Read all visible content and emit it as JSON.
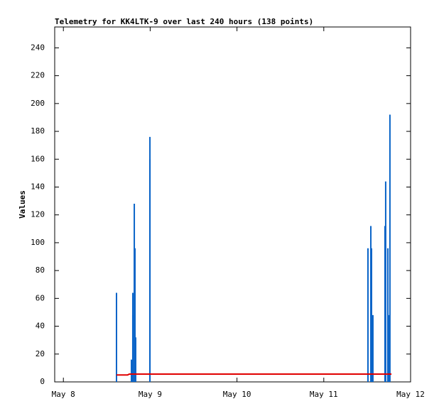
{
  "chart_data": {
    "type": "line",
    "title": "Telemetry for KK4LTK-9 over last 240 hours (138 points)",
    "y_label": "Values",
    "xlim": [
      7.9,
      12
    ],
    "xticks": [
      {
        "value": 8,
        "label": "May 8"
      },
      {
        "value": 9,
        "label": "May 9"
      },
      {
        "value": 10,
        "label": "May 10"
      },
      {
        "value": 11,
        "label": "May 11"
      },
      {
        "value": 12,
        "label": "May 12"
      }
    ],
    "ylim": [
      0,
      255
    ],
    "yticks": [
      0,
      20,
      40,
      60,
      80,
      100,
      120,
      140,
      160,
      180,
      200,
      220,
      240
    ],
    "series": [
      {
        "color": "#0a64c8",
        "style": "impulses",
        "x": [
          8.612,
          8.612,
          8.784,
          8.8,
          8.8,
          8.817,
          8.825,
          8.833,
          8.997,
          8.997,
          11.509,
          11.542,
          11.55,
          11.566,
          11.705,
          11.713,
          11.738,
          11.746,
          11.762
        ],
        "values": [
          64,
          32,
          16,
          64,
          48,
          128,
          96,
          32,
          176,
          160,
          96,
          112,
          96,
          48,
          112,
          144,
          96,
          48,
          192
        ]
      },
      {
        "color": "#e00000",
        "style": "line",
        "x": [
          8.612,
          8.74,
          8.76,
          11.78
        ],
        "values": [
          5,
          5,
          5.6,
          5.6
        ]
      }
    ]
  }
}
